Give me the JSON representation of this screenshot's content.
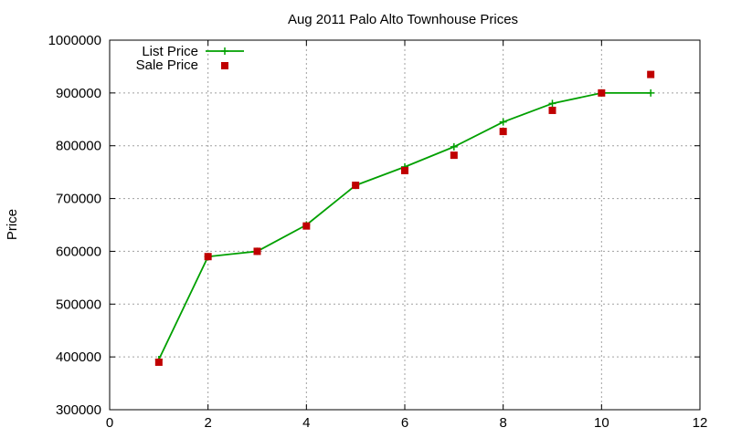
{
  "chart_data": {
    "type": "line",
    "title": "Aug 2011 Palo Alto Townhouse Prices",
    "xlabel": "",
    "ylabel": "Price",
    "xlim": [
      0,
      12
    ],
    "ylim": [
      300000,
      1000000
    ],
    "xticks": [
      0,
      2,
      4,
      6,
      8,
      10,
      12
    ],
    "yticks": [
      300000,
      400000,
      500000,
      600000,
      700000,
      800000,
      900000,
      1000000
    ],
    "grid": true,
    "legend_position": "top-left",
    "series": [
      {
        "name": "List Price",
        "style": "lines+crosses",
        "color": "#00a000",
        "x": [
          1,
          2,
          3,
          4,
          5,
          6,
          7,
          8,
          9,
          10,
          11
        ],
        "y": [
          395000,
          590000,
          600000,
          650000,
          725000,
          760000,
          798000,
          845000,
          880000,
          900000,
          900000
        ]
      },
      {
        "name": "Sale Price",
        "style": "squares",
        "color": "#c00000",
        "x": [
          1,
          2,
          3,
          4,
          5,
          6,
          7,
          8,
          9,
          10,
          11
        ],
        "y": [
          390000,
          590000,
          600000,
          648000,
          725000,
          753000,
          782000,
          827000,
          867000,
          900000,
          935000
        ]
      }
    ]
  }
}
